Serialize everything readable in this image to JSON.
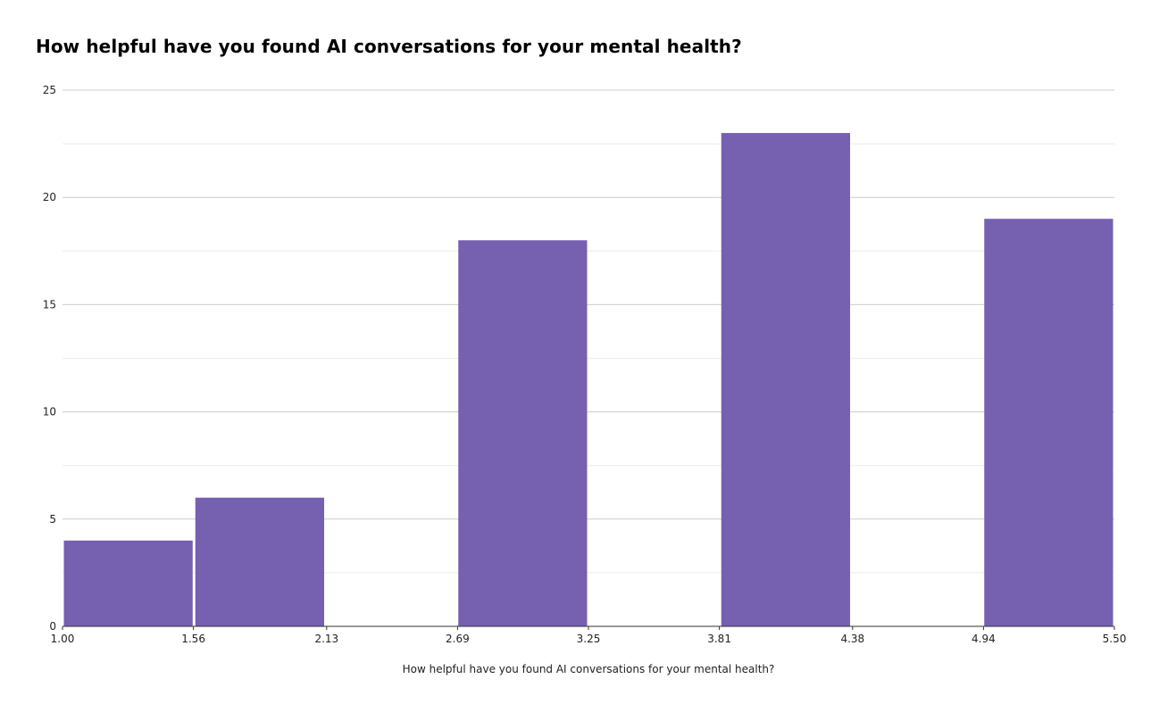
{
  "chart_data": {
    "type": "bar",
    "title": "How helpful have you found AI conversations for your mental health?",
    "xlabel": "How helpful have you found AI conversations for your mental health?",
    "ylabel": "",
    "x_ticks": [
      "1.00",
      "1.56",
      "2.13",
      "2.69",
      "3.25",
      "3.81",
      "4.38",
      "4.94",
      "5.50"
    ],
    "y_ticks": [
      "0",
      "5",
      "10",
      "15",
      "20",
      "25"
    ],
    "xlim": [
      1.0,
      5.5
    ],
    "ylim": [
      0,
      25
    ],
    "grid": true,
    "bins": [
      {
        "start": 1.0,
        "end": 1.5625,
        "value": 4
      },
      {
        "start": 1.5625,
        "end": 2.125,
        "value": 6
      },
      {
        "start": 2.125,
        "end": 2.6875,
        "value": 0
      },
      {
        "start": 2.6875,
        "end": 3.25,
        "value": 18
      },
      {
        "start": 3.25,
        "end": 3.8125,
        "value": 0
      },
      {
        "start": 3.8125,
        "end": 4.375,
        "value": 23
      },
      {
        "start": 4.375,
        "end": 4.9375,
        "value": 0
      },
      {
        "start": 4.9375,
        "end": 5.5,
        "value": 19
      }
    ],
    "colors": {
      "bar": "#7660b0",
      "grid_major": "#cccccc",
      "grid_minor": "#ebebeb",
      "axis": "#333333"
    }
  }
}
